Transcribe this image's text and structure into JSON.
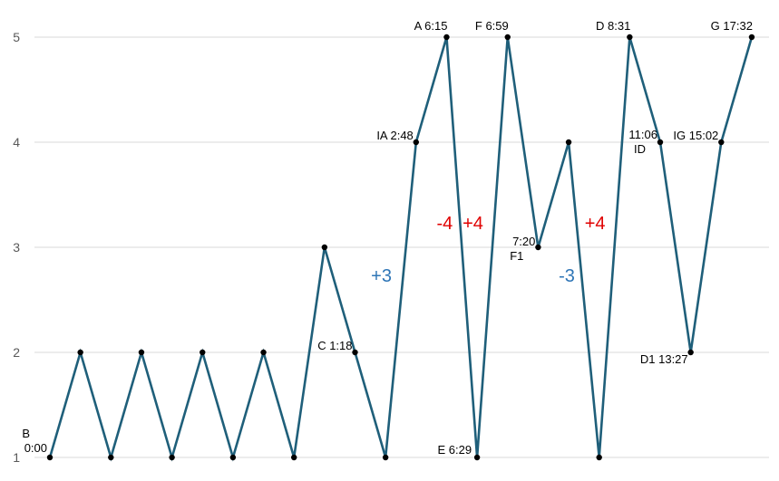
{
  "chart_data": {
    "type": "line",
    "y_ticks": [
      1,
      2,
      3,
      4,
      5
    ],
    "ylim": [
      1,
      5
    ],
    "grid": "horizontal",
    "line_color": "#1f5f7a",
    "marker_color": "#000000",
    "values": [
      1,
      2,
      1,
      2,
      1,
      2,
      1,
      2,
      1,
      3,
      2,
      1,
      4,
      5,
      1,
      5,
      3,
      4,
      1,
      5,
      4,
      2,
      4,
      5
    ],
    "point_labels": [
      {
        "index": 0,
        "lines": [
          "B",
          "0:00"
        ]
      },
      {
        "index": 10,
        "lines": [
          "C 1:18"
        ]
      },
      {
        "index": 12,
        "lines": [
          "IA 2:48"
        ]
      },
      {
        "index": 13,
        "lines": [
          "A 6:15"
        ]
      },
      {
        "index": 14,
        "lines": [
          "E 6:29"
        ]
      },
      {
        "index": 15,
        "lines": [
          "F 6:59"
        ]
      },
      {
        "index": 16,
        "lines": [
          "7:20",
          "F1"
        ]
      },
      {
        "index": 19,
        "lines": [
          "D 8:31"
        ]
      },
      {
        "index": 20,
        "lines": [
          "11:06",
          "ID"
        ]
      },
      {
        "index": 21,
        "lines": [
          "D1 13:27"
        ]
      },
      {
        "index": 22,
        "lines": [
          "IG 15:02"
        ]
      },
      {
        "index": 23,
        "lines": [
          "G 17:32"
        ]
      }
    ],
    "annotations": [
      {
        "text": "+3",
        "color": "#2e75b6",
        "segment": 11
      },
      {
        "text": "-4",
        "color": "#e00000",
        "segment": 13
      },
      {
        "text": "+4",
        "color": "#e00000",
        "segment": 14
      },
      {
        "text": "-3",
        "color": "#2e75b6",
        "segment": 17
      },
      {
        "text": "+4",
        "color": "#e00000",
        "segment": 18
      }
    ]
  }
}
